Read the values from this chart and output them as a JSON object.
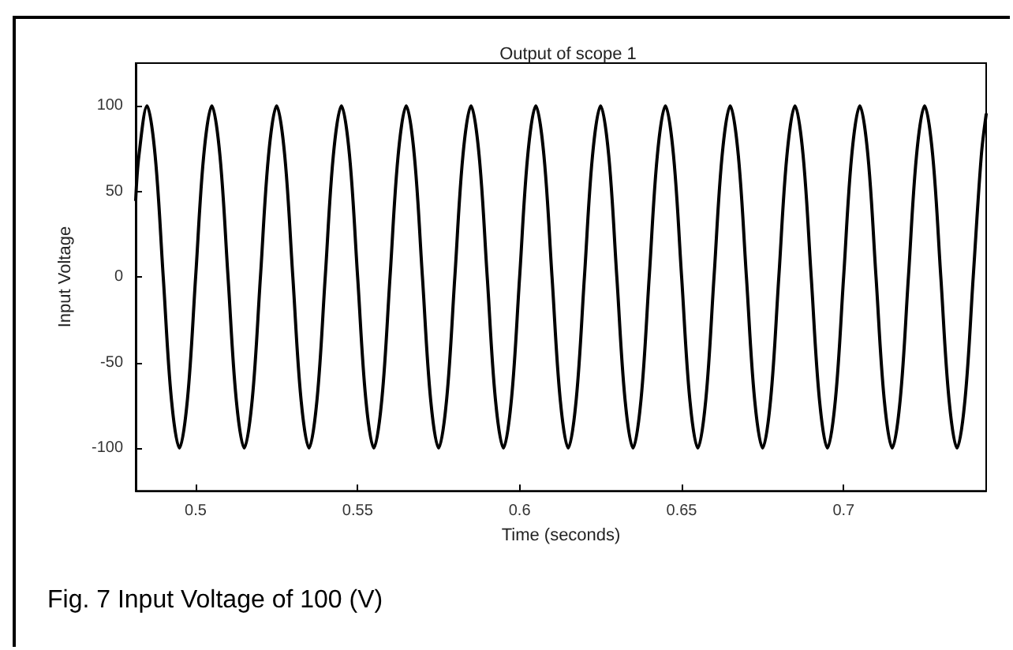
{
  "chart_data": {
    "type": "line",
    "title": "Output of scope 1",
    "xlabel": "Time (seconds)",
    "ylabel": "Input Voltage",
    "annotations": [
      "Fig. 7 Input Voltage of 100 (V)"
    ],
    "x": [
      0.4815,
      0.4825,
      0.485,
      0.4875,
      0.49,
      0.4925,
      0.495,
      0.4975,
      0.5,
      0.5025,
      0.505,
      0.5075,
      0.51,
      0.5125,
      0.515,
      0.5175,
      0.52,
      0.5225,
      0.525,
      0.5275,
      0.53,
      0.5325,
      0.535,
      0.5375,
      0.54,
      0.5425,
      0.545,
      0.5475,
      0.55,
      0.5525,
      0.555,
      0.5575,
      0.56,
      0.5625,
      0.565,
      0.5675,
      0.57,
      0.5725,
      0.575,
      0.5775,
      0.58,
      0.5825,
      0.585,
      0.5875,
      0.59,
      0.5925,
      0.595,
      0.5975,
      0.6,
      0.6025,
      0.605,
      0.6075,
      0.61,
      0.6125,
      0.615,
      0.6175,
      0.62,
      0.6225,
      0.625,
      0.6275,
      0.63,
      0.6325,
      0.635,
      0.6375,
      0.64,
      0.6425,
      0.645,
      0.6475,
      0.65,
      0.6525,
      0.655,
      0.6575,
      0.66,
      0.6625,
      0.665,
      0.6675,
      0.67,
      0.6725,
      0.675,
      0.6775,
      0.68,
      0.6825,
      0.685,
      0.6875,
      0.69,
      0.6925,
      0.695,
      0.6975,
      0.7,
      0.7025,
      0.705,
      0.7075,
      0.71,
      0.7125,
      0.715,
      0.7175,
      0.72,
      0.7225,
      0.725,
      0.7275,
      0.73,
      0.7325,
      0.735,
      0.7375,
      0.74,
      0.7425,
      0.744
    ],
    "series": [
      {
        "color": "#000000",
        "values": [
          45,
          71,
          100,
          71,
          0,
          -71,
          -100,
          -71,
          0,
          71,
          100,
          71,
          0,
          -71,
          -100,
          -71,
          0,
          71,
          100,
          71,
          0,
          -71,
          -100,
          -71,
          0,
          71,
          100,
          71,
          0,
          -71,
          -100,
          -71,
          0,
          71,
          100,
          71,
          0,
          -71,
          -100,
          -71,
          0,
          71,
          100,
          71,
          0,
          -71,
          -100,
          -71,
          0,
          71,
          100,
          71,
          0,
          -71,
          -100,
          -71,
          0,
          71,
          100,
          71,
          0,
          -71,
          -100,
          -71,
          0,
          71,
          100,
          71,
          0,
          -71,
          -100,
          -71,
          0,
          71,
          100,
          71,
          0,
          -71,
          -100,
          -71,
          0,
          71,
          100,
          71,
          0,
          -71,
          -100,
          -71,
          0,
          71,
          100,
          71,
          0,
          -71,
          -100,
          -71,
          0,
          71,
          100,
          71,
          0,
          -71,
          -100,
          -71,
          0,
          71,
          95
        ]
      }
    ],
    "xlim": [
      0.4815,
      0.744
    ],
    "xticks": [
      0.5,
      0.55,
      0.6,
      0.65,
      0.7
    ],
    "ylim": [
      -125,
      125
    ],
    "yticks": [
      -100,
      -50,
      0,
      50,
      100
    ],
    "grid": false,
    "marker": "none",
    "line_style": "solid"
  }
}
